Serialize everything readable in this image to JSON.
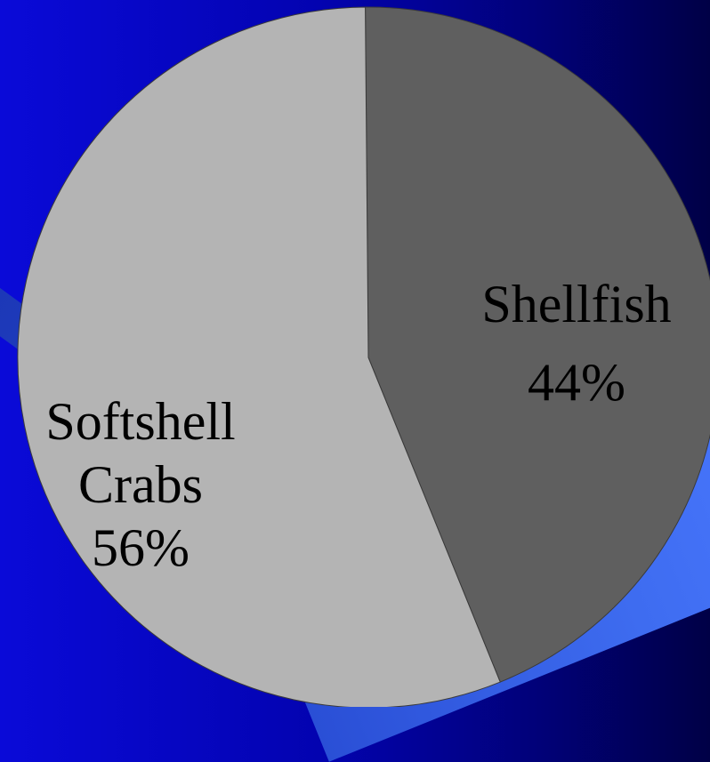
{
  "slide": {
    "title_fragment": ")"
  },
  "chart_data": {
    "type": "pie",
    "title": "",
    "slices": [
      {
        "label_lines": [
          "Shellfish",
          "44%"
        ],
        "value": 44,
        "color": "#5f5f5f"
      },
      {
        "label_lines": [
          "Softshell",
          "Crabs",
          "56%"
        ],
        "value": 56,
        "color": "#b4b4b4"
      }
    ],
    "legend": "none",
    "background_colors": [
      "#0a0ad8",
      "#000046"
    ],
    "accent_color": "#ffd77a"
  }
}
